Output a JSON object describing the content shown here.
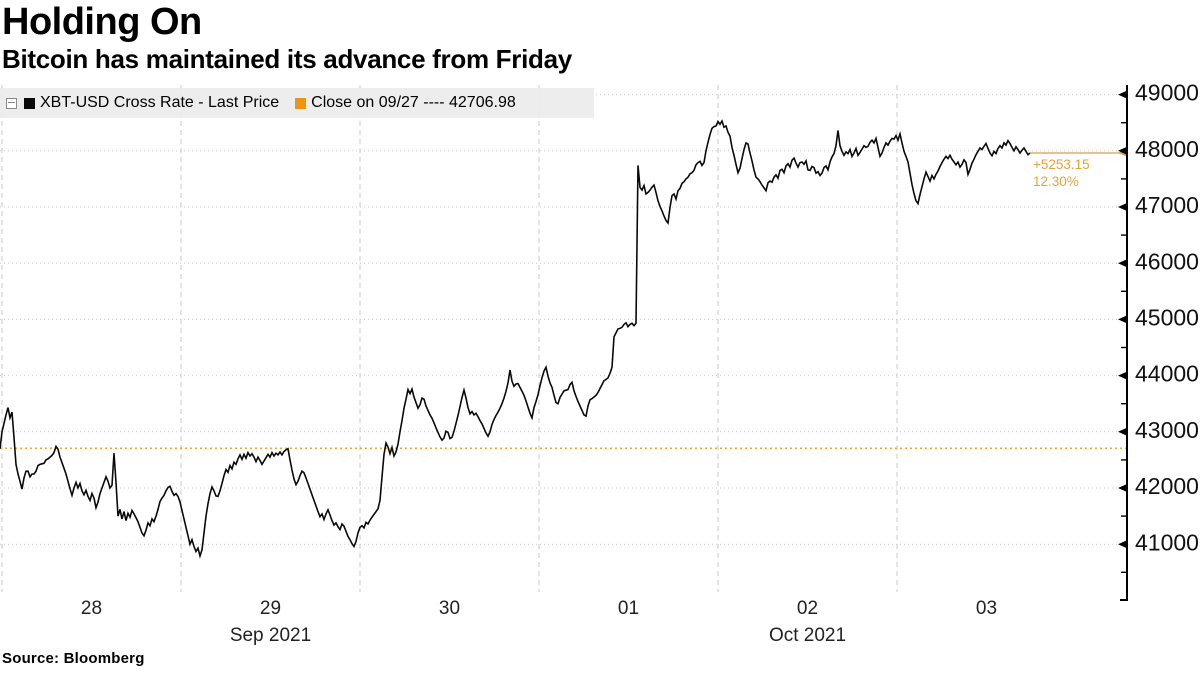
{
  "header": {
    "title": "Holding On",
    "subtitle": "Bitcoin has maintained its advance from Friday"
  },
  "source": "Source: Bloomberg",
  "legend": {
    "items": [
      {
        "label": "XBT-USD Cross Rate - Last Price",
        "color": "#0a0a0a"
      },
      {
        "label": "Close on 09/27 ---- 42706.98",
        "color": "#f0940f"
      }
    ]
  },
  "chart_data": {
    "type": "line",
    "title": "Holding On",
    "subtitle": "Bitcoin has maintained its advance from Friday",
    "x_unit": "days since 2021-09-28 00:00",
    "grid": true,
    "legend_position": "top-left",
    "x_axis": {
      "range_days": [
        -0.0112,
        6.2849
      ],
      "day_gridlines": [
        0,
        1,
        2,
        3,
        4,
        5
      ],
      "day_ticks": [
        {
          "label": "28",
          "day": 0.5
        },
        {
          "label": "29",
          "day": 1.5
        },
        {
          "label": "30",
          "day": 2.5
        },
        {
          "label": "01",
          "day": 3.5
        },
        {
          "label": "02",
          "day": 4.5
        },
        {
          "label": "03",
          "day": 5.5
        }
      ],
      "month_labels": [
        {
          "label": "Sep 2021",
          "day": 1.5
        },
        {
          "label": "Oct 2021",
          "day": 4.5
        }
      ]
    },
    "y_axis": {
      "side": "right",
      "range": [
        40150,
        49170
      ],
      "ticks": [
        41000,
        42000,
        43000,
        44000,
        45000,
        46000,
        47000,
        48000,
        49000
      ],
      "minor_step": 500
    },
    "reference_line": {
      "label": "Close on 09/27",
      "value": 42706.98,
      "color": "#e7a83b",
      "style": "dotted"
    },
    "last_price": {
      "value": 47960.13,
      "change_text": "+5253.15",
      "pct_text": "12.30%",
      "line_color": "#cfa04a",
      "text_color": "#e2a33f"
    },
    "series": [
      {
        "name": "XBT-USD Cross Rate - Last Price",
        "color": "#0a0a0a",
        "x_start_day": -0.011173,
        "x_step_day": 0.011173,
        "prices": [
          42700,
          43000,
          43150,
          43300,
          43430,
          43250,
          43350,
          42900,
          42420,
          42250,
          42120,
          41980,
          42180,
          42300,
          42300,
          42200,
          42250,
          42250,
          42300,
          42400,
          42420,
          42430,
          42440,
          42500,
          42520,
          42550,
          42580,
          42630,
          42740,
          42690,
          42550,
          42450,
          42350,
          42250,
          42120,
          41990,
          41870,
          42000,
          42100,
          42000,
          42080,
          41950,
          41880,
          41960,
          41850,
          41780,
          41900,
          41820,
          41650,
          41750,
          41900,
          42000,
          42100,
          42200,
          42120,
          42000,
          42050,
          42620,
          42100,
          41500,
          41620,
          41450,
          41580,
          41420,
          41550,
          41480,
          41600,
          41540,
          41470,
          41400,
          41300,
          41200,
          41150,
          41250,
          41380,
          41330,
          41450,
          41400,
          41500,
          41620,
          41760,
          41820,
          41870,
          41950,
          42010,
          42030,
          41940,
          41870,
          41900,
          41850,
          41750,
          41600,
          41450,
          41300,
          41150,
          41000,
          41080,
          40960,
          40870,
          40930,
          40790,
          40900,
          41200,
          41500,
          41720,
          41900,
          42020,
          41950,
          41860,
          41850,
          41950,
          42080,
          42220,
          42330,
          42280,
          42400,
          42340,
          42460,
          42420,
          42520,
          42590,
          42510,
          42600,
          42530,
          42630,
          42570,
          42610,
          42550,
          42470,
          42550,
          42490,
          42420,
          42480,
          42540,
          42600,
          42550,
          42630,
          42570,
          42620,
          42590,
          42640,
          42590,
          42650,
          42680,
          42700,
          42500,
          42320,
          42160,
          42060,
          42120,
          42220,
          42300,
          42270,
          42180,
          42080,
          41980,
          41880,
          41780,
          41680,
          41580,
          41490,
          41540,
          41440,
          41540,
          41610,
          41520,
          41420,
          41340,
          41380,
          41310,
          41260,
          41360,
          41320,
          41230,
          41140,
          41080,
          41010,
          40960,
          41050,
          41200,
          41300,
          41330,
          41290,
          41390,
          41360,
          41430,
          41480,
          41530,
          41580,
          41630,
          41780,
          42200,
          42600,
          42800,
          42730,
          42610,
          42720,
          42570,
          42640,
          42780,
          43000,
          43200,
          43420,
          43580,
          43750,
          43680,
          43760,
          43620,
          43520,
          43420,
          43480,
          43600,
          43580,
          43460,
          43380,
          43300,
          43240,
          43160,
          43070,
          42990,
          42910,
          42850,
          42890,
          43010,
          42990,
          42880,
          42900,
          43010,
          43150,
          43290,
          43450,
          43610,
          43740,
          43600,
          43430,
          43320,
          43360,
          43300,
          43330,
          43270,
          43200,
          43140,
          43060,
          42980,
          42920,
          43000,
          43130,
          43220,
          43290,
          43350,
          43420,
          43500,
          43600,
          43720,
          43870,
          44100,
          43900,
          43810,
          43850,
          43860,
          43790,
          43720,
          43650,
          43550,
          43440,
          43330,
          43250,
          43430,
          43540,
          43660,
          43820,
          43960,
          44080,
          44150,
          43990,
          43870,
          43790,
          43650,
          43520,
          43500,
          43610,
          43670,
          43730,
          43740,
          43750,
          43840,
          43880,
          43730,
          43630,
          43540,
          43460,
          43380,
          43300,
          43280,
          43460,
          43570,
          43590,
          43620,
          43650,
          43700,
          43770,
          43840,
          43910,
          43930,
          43960,
          44040,
          44150,
          44690,
          44760,
          44830,
          44840,
          44860,
          44910,
          44940,
          44870,
          44910,
          44930,
          44890,
          44930,
          47740,
          47350,
          47300,
          47380,
          47230,
          47260,
          47300,
          47350,
          47390,
          47260,
          47110,
          47010,
          46930,
          46840,
          46760,
          46715,
          46990,
          47200,
          47230,
          47140,
          47290,
          47330,
          47420,
          47450,
          47500,
          47530,
          47590,
          47610,
          47650,
          47750,
          47790,
          47810,
          47740,
          47790,
          48000,
          48150,
          48290,
          48400,
          48430,
          48440,
          48520,
          48470,
          48530,
          48420,
          48440,
          48330,
          48260,
          48060,
          47920,
          47760,
          47610,
          47690,
          47860,
          48020,
          48140,
          48120,
          47960,
          47820,
          47660,
          47530,
          47500,
          47450,
          47390,
          47340,
          47290,
          47430,
          47460,
          47440,
          47530,
          47570,
          47510,
          47650,
          47670,
          47610,
          47730,
          47770,
          47710,
          47830,
          47870,
          47780,
          47710,
          47790,
          47800,
          47760,
          47820,
          47660,
          47650,
          47720,
          47700,
          47600,
          47630,
          47560,
          47600,
          47700,
          47730,
          47660,
          47800,
          47890,
          47950,
          48090,
          48360,
          48090,
          47990,
          47920,
          47980,
          47950,
          48020,
          47900,
          47960,
          48040,
          47920,
          47970,
          48030,
          48090,
          48060,
          48080,
          48150,
          48190,
          48140,
          48220,
          48060,
          47900,
          47960,
          48060,
          48140,
          48100,
          48170,
          48220,
          48210,
          48270,
          48190,
          48300,
          48140,
          47990,
          47900,
          47800,
          47600,
          47400,
          47240,
          47110,
          47060,
          47220,
          47360,
          47500,
          47620,
          47540,
          47460,
          47560,
          47500,
          47580,
          47640,
          47720,
          47790,
          47850,
          47900,
          47860,
          47920,
          47850,
          47800,
          47750,
          47800,
          47710,
          47760,
          47840,
          47790,
          47580,
          47670,
          47780,
          47850,
          47930,
          47990,
          48050,
          48020,
          48080,
          48130,
          48040,
          47960,
          47910,
          47990,
          47950,
          48040,
          48090,
          48050,
          48140,
          48100,
          48180,
          48130,
          48060,
          48000,
          48070,
          48020,
          47960,
          48010,
          48050,
          47990,
          47930,
          47960.13
        ]
      }
    ]
  }
}
